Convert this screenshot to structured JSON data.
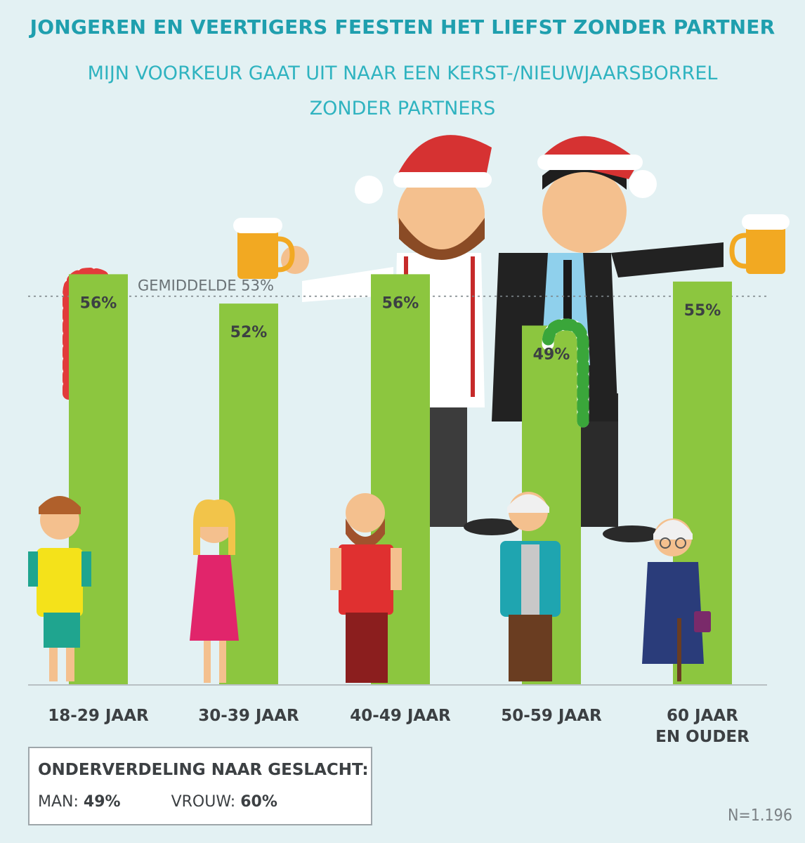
{
  "header": {
    "title": "JONGEREN EN VEERTIGERS FEESTEN HET LIEFST ZONDER PARTNER",
    "subtitle_line1": "MIJN VOORKEUR GAAT UIT NAAR EEN KERST-/NIEUWJAARSBORREL",
    "subtitle_line2": "ZONDER PARTNERS"
  },
  "chart_data": {
    "type": "bar",
    "categories": [
      "18-29 JAAR",
      "30-39 JAAR",
      "40-49 JAAR",
      "50-59 JAAR",
      "60 JAAR EN OUDER"
    ],
    "category_lines": [
      [
        "18-29 JAAR"
      ],
      [
        "30-39 JAAR"
      ],
      [
        "40-49 JAAR"
      ],
      [
        "50-59 JAAR"
      ],
      [
        "60 JAAR",
        "EN OUDER"
      ]
    ],
    "values": [
      56,
      52,
      56,
      49,
      55
    ],
    "value_labels": [
      "56%",
      "52%",
      "56%",
      "49%",
      "55%"
    ],
    "average": 53,
    "average_label": "GEMIDDELDE 53%",
    "ylim": [
      0,
      100
    ],
    "bar_color": "#8cc63f",
    "grid": false
  },
  "legend": {
    "title": "ONDERVERDELING NAAR GESLACHT:",
    "man_label": "MAN:",
    "man_value": "49%",
    "vrouw_label": "VROUW:",
    "vrouw_value": "60%"
  },
  "footer": {
    "n": "N=1.196"
  },
  "colors": {
    "background": "#e3f1f3",
    "title": "#1f9fae",
    "subtitle": "#2fb3c0",
    "label": "#3c4043"
  },
  "illustrations": [
    "candy-cane-red",
    "candy-cane-green",
    "beer-mug-icon",
    "santa-hat-icon",
    "person-figure"
  ]
}
